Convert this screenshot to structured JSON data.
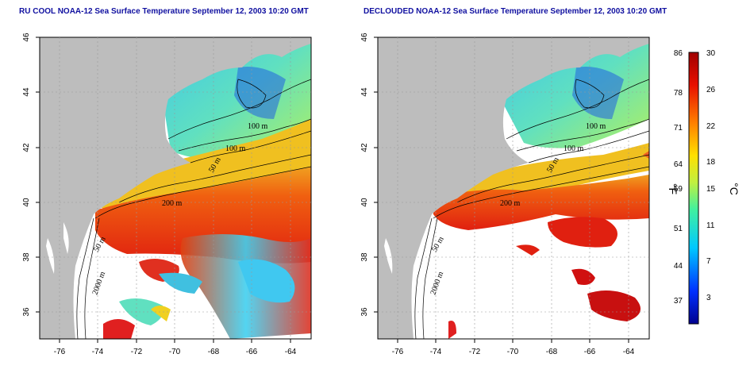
{
  "titles": {
    "left": "RU COOL NOAA-12 Sea Surface Temperature September 12, 2003 10:20 GMT",
    "right": "DECLOUDED NOAA-12 Sea Surface Temperature September 12, 2003 10:20 GMT"
  },
  "axes": {
    "lon_ticks": [
      "-76",
      "-74",
      "-72",
      "-70",
      "-68",
      "-66",
      "-64"
    ],
    "lat_ticks": [
      "46",
      "44",
      "42",
      "40",
      "38",
      "36"
    ]
  },
  "contour_labels": {
    "left": [
      "100 m",
      "100 m",
      "50 m",
      "200 m",
      "50 m",
      "2000 m"
    ],
    "right": [
      "100 m",
      "100 m",
      "50 m",
      "200 m",
      "50 m",
      "2000 m"
    ]
  },
  "colorbar": {
    "fahrenheit_ticks": [
      "86",
      "78",
      "71",
      "64",
      "59",
      "51",
      "44",
      "37"
    ],
    "celsius_ticks": [
      "30",
      "26",
      "22",
      "18",
      "15",
      "11",
      "7",
      "3"
    ],
    "fahrenheit_unit": "°F",
    "celsius_unit": "°C"
  },
  "colors": {
    "title": "#1010a0",
    "land": "#bdbdbd",
    "no_data": "#ffffff",
    "sst_warm": "#d01010",
    "sst_cold": "#1030d0"
  }
}
